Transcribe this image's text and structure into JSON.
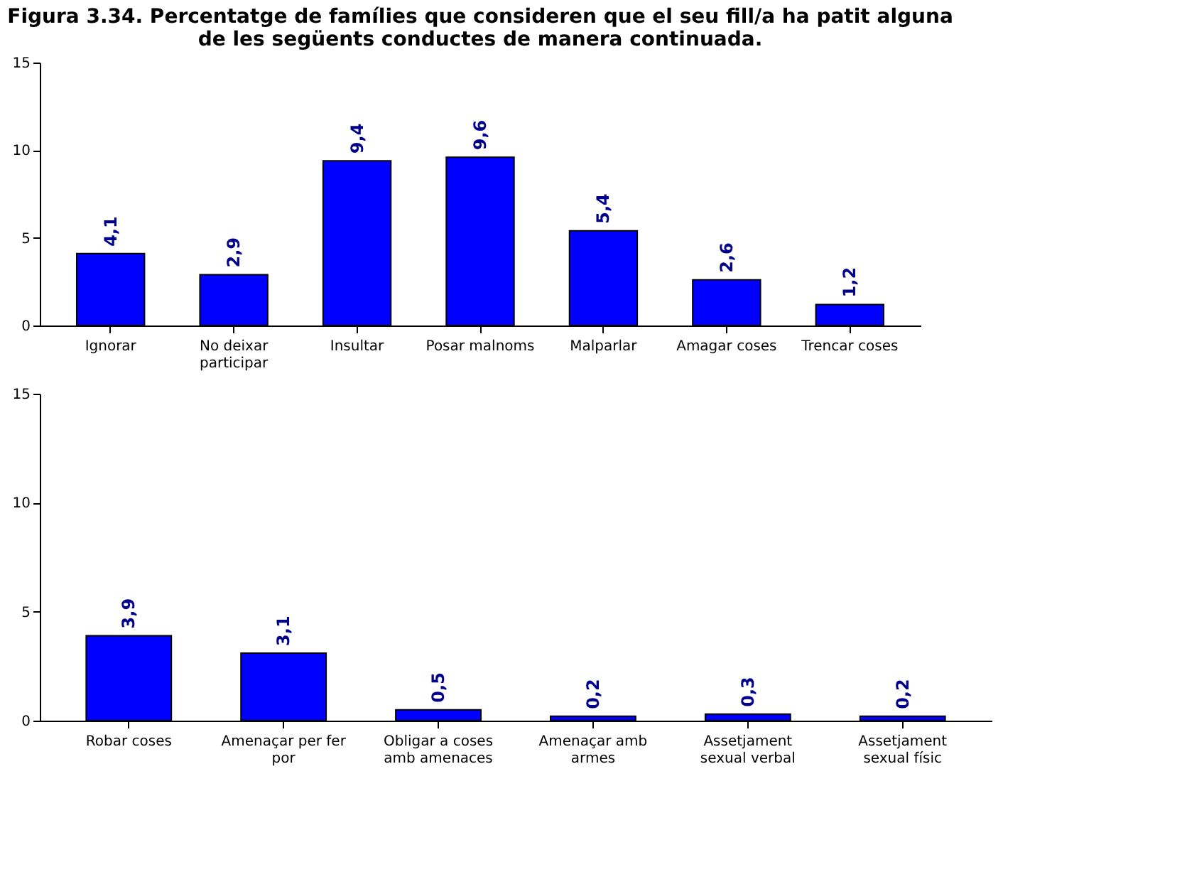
{
  "chart_data": [
    {
      "type": "bar",
      "title": "Figura 3.34. Percentatge de famílies que consideren que el seu fill/a ha patit alguna de les següents conductes de manera continuada.",
      "categories": [
        "Ignorar",
        "No deixar participar",
        "Insultar",
        "Posar malnoms",
        "Malparlar",
        "Amagar coses",
        "Trencar coses"
      ],
      "values": [
        4.1,
        2.9,
        9.4,
        9.6,
        5.4,
        2.6,
        1.2
      ],
      "value_labels": [
        "4,1",
        "2,9",
        "9,4",
        "9,6",
        "5,4",
        "2,6",
        "1,2"
      ],
      "color": "#0000ff",
      "ylim": [
        0,
        15
      ],
      "yticks": [
        0,
        5,
        10,
        15
      ],
      "grid": false
    },
    {
      "type": "bar",
      "categories": [
        "Robar coses",
        "Amenaçar per fer por",
        "Obligar a coses amb amenaces",
        "Amenaçar amb armes",
        "Assetjament sexual verbal",
        "Assetjament sexual físic"
      ],
      "values": [
        3.9,
        3.1,
        0.5,
        0.2,
        0.3,
        0.2
      ],
      "value_labels": [
        "3,9",
        "3,1",
        "0,5",
        "0,2",
        "0,3",
        "0,2"
      ],
      "color": "#0000ff",
      "ylim": [
        0,
        15
      ],
      "yticks": [
        0,
        5,
        10,
        15
      ],
      "grid": false
    }
  ]
}
